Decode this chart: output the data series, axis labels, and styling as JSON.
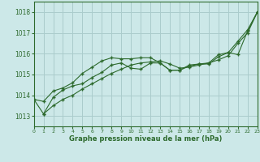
{
  "background_color": "#cce8e8",
  "grid_color": "#aacccc",
  "line_color": "#2d6a2d",
  "xlim": [
    0,
    23
  ],
  "ylim": [
    1012.5,
    1018.5
  ],
  "yticks": [
    1013,
    1014,
    1015,
    1016,
    1017,
    1018
  ],
  "xticks": [
    0,
    1,
    2,
    3,
    4,
    5,
    6,
    7,
    8,
    9,
    10,
    11,
    12,
    13,
    14,
    15,
    16,
    17,
    18,
    19,
    20,
    21,
    22,
    23
  ],
  "xlabel": "Graphe pression niveau de la mer (hPa)",
  "series1_x": [
    0,
    1,
    2,
    3,
    4,
    5,
    6,
    7,
    8,
    9,
    10,
    11,
    12,
    13,
    14,
    15,
    16,
    17,
    18,
    19,
    20,
    21,
    22,
    23
  ],
  "series1_y": [
    1013.8,
    1013.7,
    1014.2,
    1014.35,
    1014.6,
    1015.05,
    1015.35,
    1015.65,
    1015.8,
    1015.75,
    1015.75,
    1015.8,
    1015.8,
    1015.55,
    1015.2,
    1015.2,
    1015.4,
    1015.5,
    1015.5,
    1015.85,
    1016.05,
    1015.95,
    1017.1,
    1018.0
  ],
  "series2_x": [
    0,
    1,
    2,
    3,
    4,
    5,
    6,
    7,
    8,
    9,
    10,
    11,
    12,
    13,
    14,
    15,
    16,
    17,
    18,
    19,
    20,
    21,
    22,
    23
  ],
  "series2_y": [
    1013.8,
    1013.1,
    1013.9,
    1014.25,
    1014.45,
    1014.55,
    1014.85,
    1015.1,
    1015.45,
    1015.55,
    1015.3,
    1015.25,
    1015.55,
    1015.55,
    1015.2,
    1015.2,
    1015.45,
    1015.5,
    1015.55,
    1015.95,
    1016.05,
    1016.6,
    1017.15,
    1018.0
  ],
  "series3_x": [
    1,
    2,
    3,
    4,
    5,
    6,
    7,
    8,
    9,
    10,
    11,
    12,
    13,
    14,
    15,
    16,
    17,
    18,
    19,
    20,
    21,
    22,
    23
  ],
  "series3_y": [
    1013.1,
    1013.5,
    1013.8,
    1014.0,
    1014.3,
    1014.55,
    1014.8,
    1015.05,
    1015.25,
    1015.45,
    1015.55,
    1015.6,
    1015.65,
    1015.5,
    1015.3,
    1015.35,
    1015.45,
    1015.55,
    1015.7,
    1015.9,
    1016.5,
    1017.0,
    1018.0
  ]
}
